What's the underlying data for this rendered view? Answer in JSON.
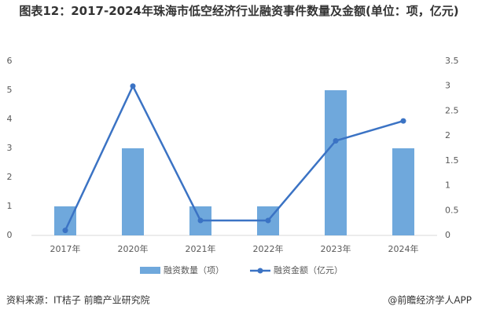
{
  "chart_data": {
    "type": "bar",
    "title": "图表12：2017-2024年珠海市低空经济行业融资事件数量及金额(单位：项，亿元)",
    "categories": [
      "2017年",
      "2020年",
      "2021年",
      "2022年",
      "2023年",
      "2024年"
    ],
    "series": [
      {
        "name": "融资数量（项）",
        "type": "bar",
        "color": "#6fa8dc",
        "values": [
          1,
          3,
          1,
          1,
          5,
          3
        ]
      },
      {
        "name": "融资金额（亿元）",
        "type": "line",
        "axis": "y2",
        "color": "#3b73c4",
        "values": [
          0.1,
          3.0,
          0.3,
          0.3,
          1.9,
          2.3
        ]
      }
    ],
    "ylim": [
      0,
      6
    ],
    "yticks": [
      0,
      1,
      2,
      3,
      4,
      5,
      6
    ],
    "y2lim": [
      0,
      3.5
    ],
    "y2ticks": [
      0,
      0.5,
      1,
      1.5,
      2,
      2.5,
      3,
      3.5
    ],
    "grid": false,
    "source": "资料来源：IT桔子 前瞻产业研究院",
    "credit": "@前瞻经济学人APP"
  }
}
